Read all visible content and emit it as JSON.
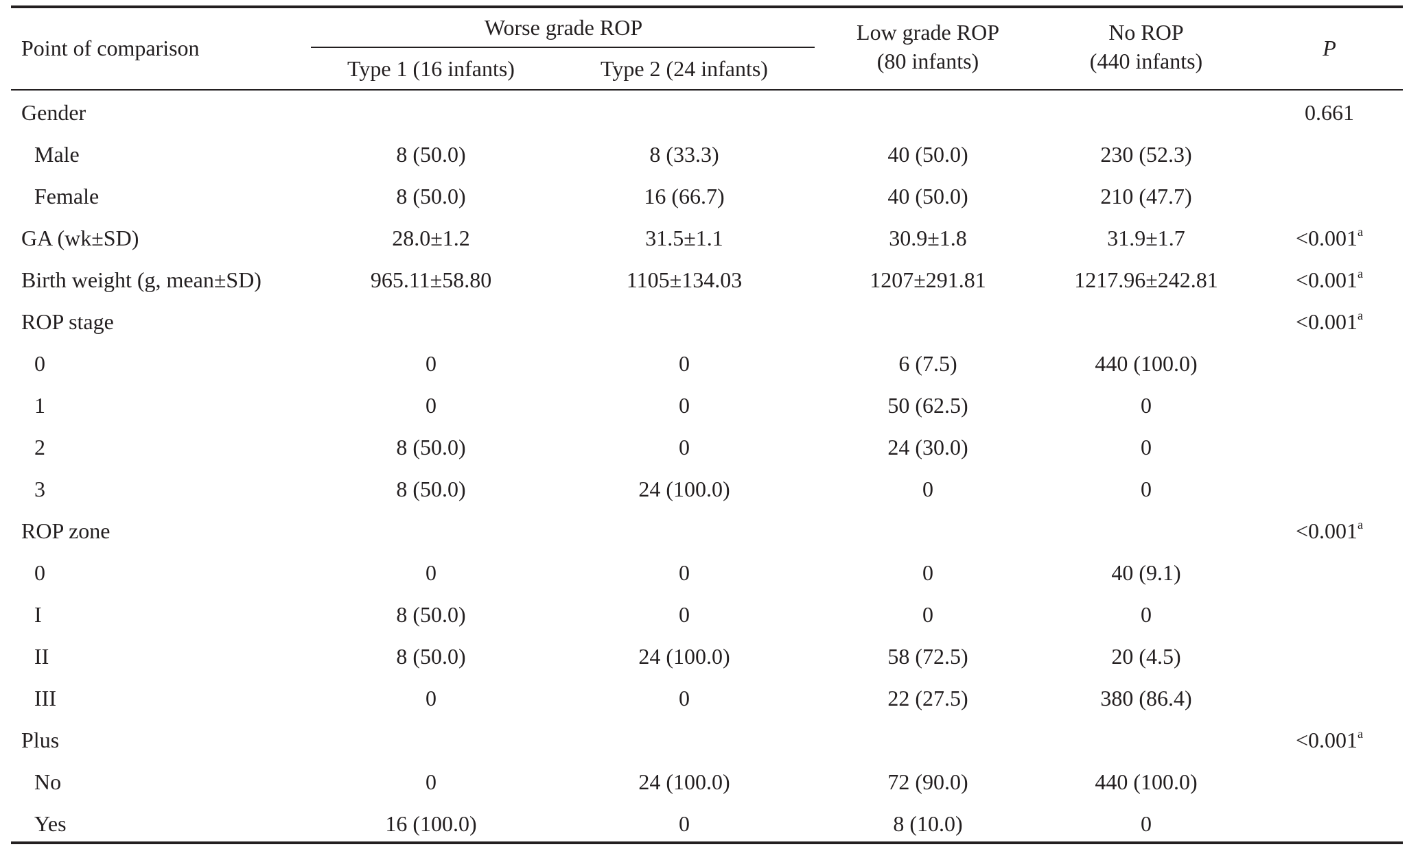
{
  "header": {
    "point_of_comparison": "Point of comparison",
    "worse_grade": "Worse grade ROP",
    "type1": "Type 1 (16 infants)",
    "type2": "Type 2 (24 infants)",
    "low_grade_line1": "Low grade ROP",
    "low_grade_line2": "(80 infants)",
    "no_rop_line1": "No ROP",
    "no_rop_line2": "(440 infants)",
    "p": "P"
  },
  "rows": [
    {
      "label": "Gender",
      "indent": false,
      "t1": "",
      "t2": "",
      "low": "",
      "no": "",
      "p": "0.661",
      "sup": ""
    },
    {
      "label": "Male",
      "indent": true,
      "t1": "8 (50.0)",
      "t2": "8 (33.3)",
      "low": "40 (50.0)",
      "no": "230 (52.3)",
      "p": "",
      "sup": ""
    },
    {
      "label": "Female",
      "indent": true,
      "t1": "8 (50.0)",
      "t2": "16 (66.7)",
      "low": "40 (50.0)",
      "no": "210 (47.7)",
      "p": "",
      "sup": ""
    },
    {
      "label": "GA (wk±SD)",
      "indent": false,
      "t1": "28.0±1.2",
      "t2": "31.5±1.1",
      "low": "30.9±1.8",
      "no": "31.9±1.7",
      "p": "<0.001",
      "sup": "a"
    },
    {
      "label": "Birth weight (g, mean±SD)",
      "indent": false,
      "t1": "965.11±58.80",
      "t2": "1105±134.03",
      "low": "1207±291.81",
      "no": "1217.96±242.81",
      "p": "<0.001",
      "sup": "a"
    },
    {
      "label": "ROP stage",
      "indent": false,
      "t1": "",
      "t2": "",
      "low": "",
      "no": "",
      "p": "<0.001",
      "sup": "a"
    },
    {
      "label": "0",
      "indent": true,
      "t1": "0",
      "t2": "0",
      "low": "6 (7.5)",
      "no": "440 (100.0)",
      "p": "",
      "sup": ""
    },
    {
      "label": "1",
      "indent": true,
      "t1": "0",
      "t2": "0",
      "low": "50 (62.5)",
      "no": "0",
      "p": "",
      "sup": ""
    },
    {
      "label": "2",
      "indent": true,
      "t1": "8 (50.0)",
      "t2": "0",
      "low": "24 (30.0)",
      "no": "0",
      "p": "",
      "sup": ""
    },
    {
      "label": "3",
      "indent": true,
      "t1": "8 (50.0)",
      "t2": "24 (100.0)",
      "low": "0",
      "no": "0",
      "p": "",
      "sup": ""
    },
    {
      "label": "ROP zone",
      "indent": false,
      "t1": "",
      "t2": "",
      "low": "",
      "no": "",
      "p": "<0.001",
      "sup": "a"
    },
    {
      "label": "0",
      "indent": true,
      "t1": "0",
      "t2": "0",
      "low": "0",
      "no": "40 (9.1)",
      "p": "",
      "sup": ""
    },
    {
      "label": "I",
      "indent": true,
      "t1": "8 (50.0)",
      "t2": "0",
      "low": "0",
      "no": "0",
      "p": "",
      "sup": ""
    },
    {
      "label": "II",
      "indent": true,
      "t1": "8 (50.0)",
      "t2": "24 (100.0)",
      "low": "58 (72.5)",
      "no": "20 (4.5)",
      "p": "",
      "sup": ""
    },
    {
      "label": "III",
      "indent": true,
      "t1": "0",
      "t2": "0",
      "low": "22 (27.5)",
      "no": "380 (86.4)",
      "p": "",
      "sup": ""
    },
    {
      "label": "Plus",
      "indent": false,
      "t1": "",
      "t2": "",
      "low": "",
      "no": "",
      "p": "<0.001",
      "sup": "a"
    },
    {
      "label": "No",
      "indent": true,
      "t1": "0",
      "t2": "24 (100.0)",
      "low": "72 (90.0)",
      "no": "440 (100.0)",
      "p": "",
      "sup": ""
    },
    {
      "label": "Yes",
      "indent": true,
      "t1": "16 (100.0)",
      "t2": "0",
      "low": "8 (10.0)",
      "no": "0",
      "p": "",
      "sup": ""
    }
  ]
}
